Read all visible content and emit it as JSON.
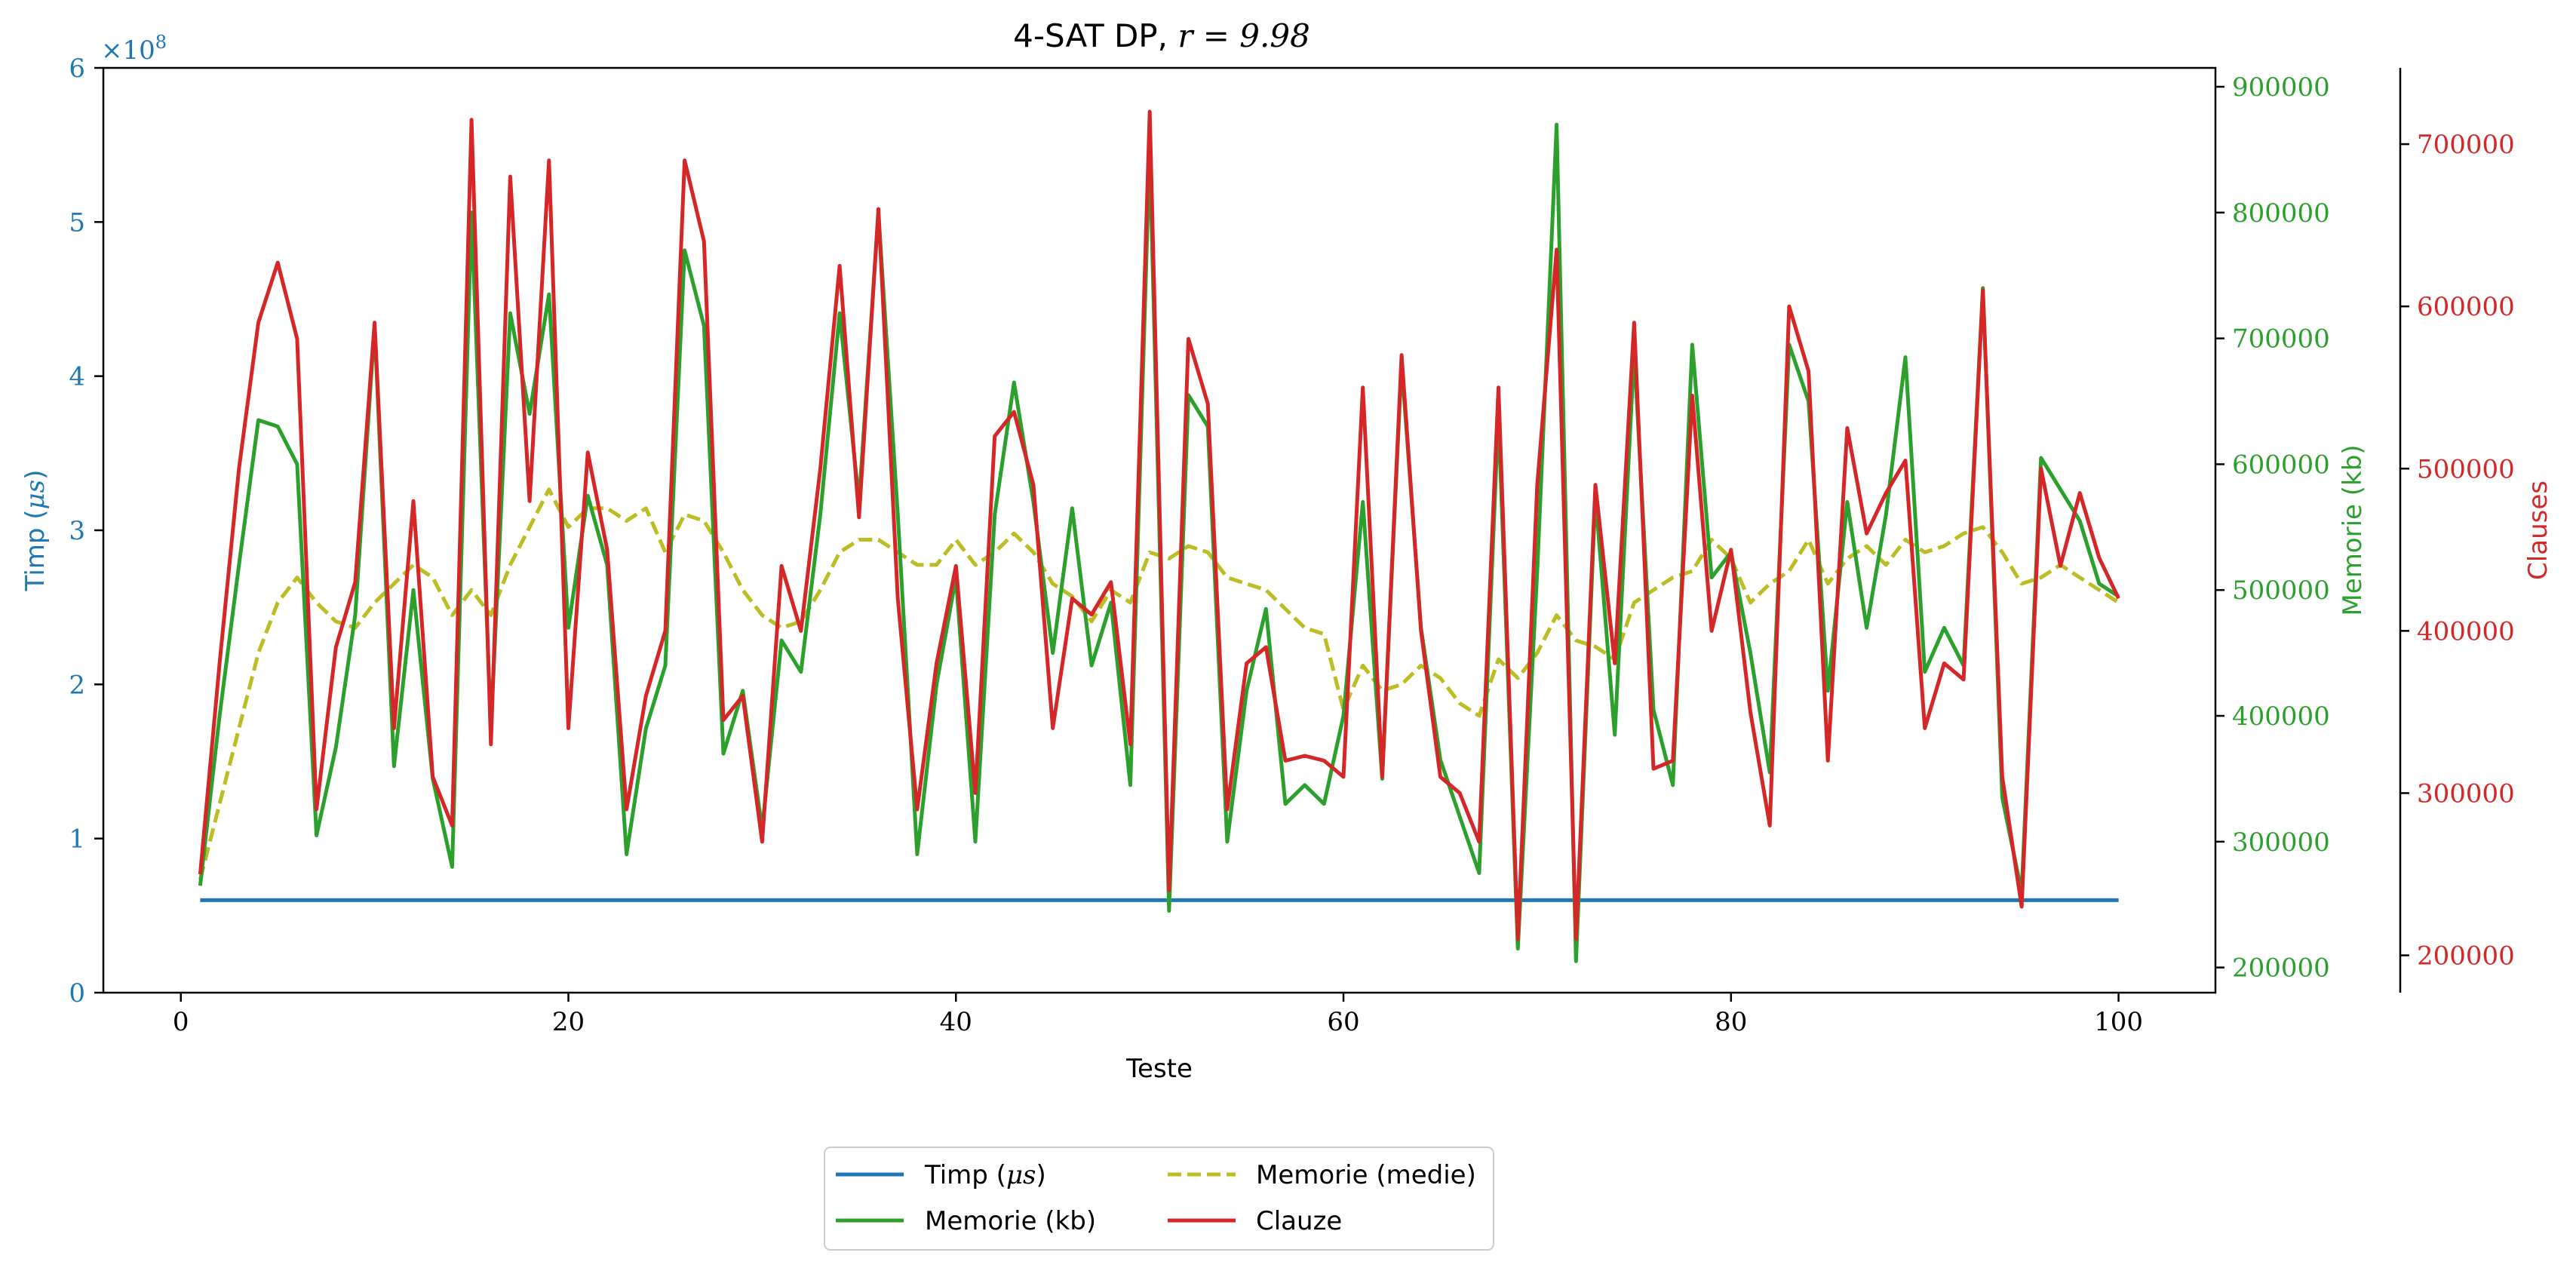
{
  "chart_data": {
    "type": "line",
    "title": "4-SAT DP, r = 9.98",
    "xlabel": "Teste",
    "xlim": [
      -4,
      105
    ],
    "x_ticks": [
      0,
      20,
      40,
      60,
      80,
      100
    ],
    "x": [
      1,
      2,
      3,
      4,
      5,
      6,
      7,
      8,
      9,
      10,
      11,
      12,
      13,
      14,
      15,
      16,
      17,
      18,
      19,
      20,
      21,
      22,
      23,
      24,
      25,
      26,
      27,
      28,
      29,
      30,
      31,
      32,
      33,
      34,
      35,
      36,
      37,
      38,
      39,
      40,
      41,
      42,
      43,
      44,
      45,
      46,
      47,
      48,
      49,
      50,
      51,
      52,
      53,
      54,
      55,
      56,
      57,
      58,
      59,
      60,
      61,
      62,
      63,
      64,
      65,
      66,
      67,
      68,
      69,
      70,
      71,
      72,
      73,
      74,
      75,
      76,
      77,
      78,
      79,
      80,
      81,
      82,
      83,
      84,
      85,
      86,
      87,
      88,
      89,
      90,
      91,
      92,
      93,
      94,
      95,
      96,
      97,
      98,
      99,
      100
    ],
    "axes": {
      "time": {
        "label": "Timp (μs)",
        "label_main": "Timp (",
        "label_unit": "μs",
        "label_close": ")",
        "ylim": [
          0,
          6
        ],
        "ticks": [
          0,
          1,
          2,
          3,
          4,
          5,
          6
        ],
        "scale_note": "×10",
        "scale_exp": "8",
        "color": "#1f77b4"
      },
      "memory": {
        "label": "Memorie (kb)",
        "ylim": [
          180000,
          915000
        ],
        "ticks": [
          200000,
          300000,
          400000,
          500000,
          600000,
          700000,
          800000,
          900000
        ],
        "tick_labels": [
          "200000",
          "300000",
          "400000",
          "500000",
          "600000",
          "700000",
          "800000",
          "900000"
        ],
        "color": "#2ca02c"
      },
      "clauses": {
        "label": "Clauses",
        "ylim": [
          177000,
          747000
        ],
        "ticks": [
          200000,
          300000,
          400000,
          500000,
          600000,
          700000
        ],
        "tick_labels": [
          "200000",
          "300000",
          "400000",
          "500000",
          "600000",
          "700000"
        ],
        "color": "#d62728"
      }
    },
    "series": [
      {
        "name": "Timp (μs)",
        "axis": "time",
        "color": "#1f77b4",
        "dash": "solid",
        "values": [
          0.6,
          0.6,
          0.6,
          0.6,
          0.6,
          0.6,
          0.6,
          0.6,
          0.6,
          0.6,
          0.6,
          0.6,
          0.6,
          0.6,
          0.6,
          0.6,
          0.6,
          0.6,
          0.6,
          0.6,
          0.6,
          0.6,
          0.6,
          0.6,
          0.6,
          0.6,
          0.6,
          0.6,
          0.6,
          0.6,
          0.6,
          0.6,
          0.6,
          0.6,
          0.6,
          0.6,
          0.6,
          0.6,
          0.6,
          0.6,
          0.6,
          0.6,
          0.6,
          0.6,
          0.6,
          0.6,
          0.6,
          0.6,
          0.6,
          0.6,
          0.6,
          0.6,
          0.6,
          0.6,
          0.6,
          0.6,
          0.6,
          0.6,
          0.6,
          0.6,
          0.6,
          0.6,
          0.6,
          0.6,
          0.6,
          0.6,
          0.6,
          0.6,
          0.6,
          0.6,
          0.6,
          0.6,
          0.6,
          0.6,
          0.6,
          0.6,
          0.6,
          0.6,
          0.6,
          0.6,
          0.6,
          0.6,
          0.6,
          0.6,
          0.6,
          0.6,
          0.6,
          0.6,
          0.6,
          0.6,
          0.6,
          0.6,
          0.6,
          0.6,
          0.6,
          0.6,
          0.6,
          0.6,
          0.6,
          0.6
        ]
      },
      {
        "name": "Memorie (kb)",
        "axis": "memory",
        "color": "#2ca02c",
        "dash": "solid",
        "values": [
          265000,
          400000,
          520000,
          635000,
          630000,
          600000,
          305000,
          375000,
          480000,
          710000,
          360000,
          500000,
          350000,
          280000,
          800000,
          390000,
          720000,
          640000,
          735000,
          470000,
          575000,
          520000,
          290000,
          390000,
          440000,
          770000,
          710000,
          370000,
          420000,
          310000,
          460000,
          435000,
          560000,
          720000,
          570000,
          800000,
          560000,
          290000,
          425000,
          510000,
          300000,
          560000,
          665000,
          570000,
          450000,
          565000,
          440000,
          490000,
          345000,
          850000,
          245000,
          655000,
          630000,
          300000,
          420000,
          485000,
          330000,
          345000,
          330000,
          400000,
          570000,
          350000,
          680000,
          470000,
          365000,
          320000,
          275000,
          640000,
          215000,
          515000,
          870000,
          205000,
          575000,
          385000,
          690000,
          405000,
          345000,
          695000,
          510000,
          530000,
          450000,
          355000,
          695000,
          650000,
          420000,
          570000,
          470000,
          560000,
          685000,
          435000,
          470000,
          440000,
          740000,
          335000,
          260000,
          605000,
          580000,
          555000,
          505000,
          495000
        ]
      },
      {
        "name": "Memorie (medie)",
        "axis": "memory",
        "color": "#bcbd22",
        "dash": "dashed",
        "values": [
          270000,
          330000,
          390000,
          450000,
          490000,
          510000,
          490000,
          475000,
          470000,
          490000,
          505000,
          520000,
          510000,
          480000,
          500000,
          480000,
          520000,
          550000,
          580000,
          550000,
          565000,
          565000,
          555000,
          565000,
          530000,
          560000,
          555000,
          530000,
          500000,
          480000,
          470000,
          475000,
          500000,
          530000,
          540000,
          540000,
          530000,
          520000,
          520000,
          540000,
          520000,
          530000,
          545000,
          530000,
          505000,
          495000,
          475000,
          500000,
          490000,
          530000,
          525000,
          535000,
          530000,
          510000,
          505000,
          500000,
          485000,
          470000,
          465000,
          405000,
          440000,
          420000,
          425000,
          440000,
          430000,
          410000,
          400000,
          445000,
          430000,
          450000,
          480000,
          460000,
          455000,
          445000,
          490000,
          500000,
          510000,
          515000,
          540000,
          525000,
          490000,
          505000,
          515000,
          540000,
          505000,
          525000,
          535000,
          520000,
          540000,
          530000,
          535000,
          545000,
          550000,
          530000,
          505000,
          510000,
          520000,
          510000,
          500000,
          490000
        ]
      },
      {
        "name": "Clauze",
        "axis": "clauses",
        "color": "#d62728",
        "dash": "solid",
        "values": [
          250000,
          380000,
          500000,
          590000,
          627000,
          580000,
          290000,
          390000,
          430000,
          590000,
          340000,
          480000,
          310000,
          280000,
          715000,
          330000,
          680000,
          480000,
          690000,
          340000,
          510000,
          450000,
          290000,
          360000,
          400000,
          690000,
          640000,
          345000,
          360000,
          270000,
          440000,
          400000,
          500000,
          625000,
          470000,
          660000,
          420000,
          290000,
          380000,
          440000,
          300000,
          520000,
          535000,
          490000,
          340000,
          420000,
          410000,
          430000,
          330000,
          720000,
          240000,
          580000,
          540000,
          290000,
          380000,
          390000,
          320000,
          323000,
          320000,
          310000,
          550000,
          310000,
          570000,
          400000,
          310000,
          300000,
          270000,
          550000,
          210000,
          490000,
          635000,
          210000,
          490000,
          380000,
          590000,
          315000,
          320000,
          545000,
          400000,
          450000,
          350000,
          280000,
          600000,
          560000,
          320000,
          525000,
          460000,
          485000,
          505000,
          340000,
          380000,
          370000,
          610000,
          310000,
          230000,
          500000,
          440000,
          485000,
          445000,
          420000
        ]
      }
    ],
    "legend": {
      "placement": "bottom-center",
      "entries": [
        {
          "label": "Timp (μs)",
          "main": "Timp (",
          "unit": "μs",
          "close": ")",
          "series": 0
        },
        {
          "label": "Memorie (kb)",
          "series": 1
        },
        {
          "label": "Memorie (medie)",
          "series": 2
        },
        {
          "label": "Clauze",
          "series": 3
        }
      ]
    },
    "grid": false
  }
}
